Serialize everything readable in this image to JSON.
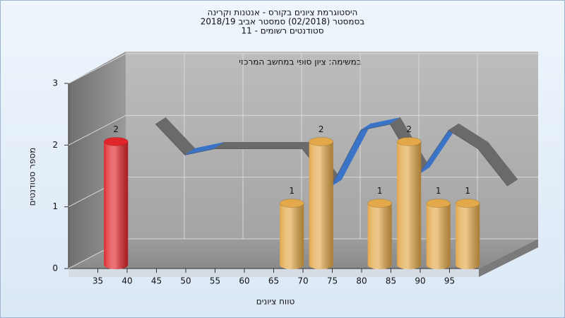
{
  "chart_data": {
    "type": "bar",
    "title": [
      "היסטוגרמת ציונים בקורס - אנטנות וקרינה",
      "בסמסטר  (02/2018)  סמסטר אביב 2018/19",
      "סטודנטים רשומים - 11"
    ],
    "annotation": "במשימה: ציון סופי במחשב המרכזי",
    "x_label": "טווח ציונים",
    "y_label": "מספר סטודנטים",
    "x": [
      35,
      65,
      70,
      80,
      85,
      90,
      95
    ],
    "values": [
      2,
      1,
      2,
      1,
      2,
      1,
      1
    ],
    "colors": [
      "#e0262a",
      "#e2a84a",
      "#e2a84a",
      "#e2a84a",
      "#e2a84a",
      "#e2a84a",
      "#e2a84a"
    ],
    "bin_width": 5,
    "curve": {
      "x": [
        40,
        45,
        50,
        55,
        60,
        65,
        70,
        75,
        80,
        85,
        90,
        95,
        100
      ],
      "values": [
        2.1,
        1.6,
        1.7,
        1.7,
        1.7,
        1.7,
        1.1,
        2.0,
        2.1,
        1.3,
        2.0,
        1.7,
        1.1
      ],
      "colors": [
        "#6a6a6a",
        "#3a74c8"
      ]
    },
    "xlim": [
      30,
      100
    ],
    "xticks": [
      35,
      40,
      45,
      50,
      55,
      60,
      65,
      70,
      75,
      80,
      85,
      90,
      95
    ],
    "ylim": [
      0,
      3
    ],
    "yticks": [
      0,
      1,
      2,
      3
    ],
    "grid": true
  }
}
